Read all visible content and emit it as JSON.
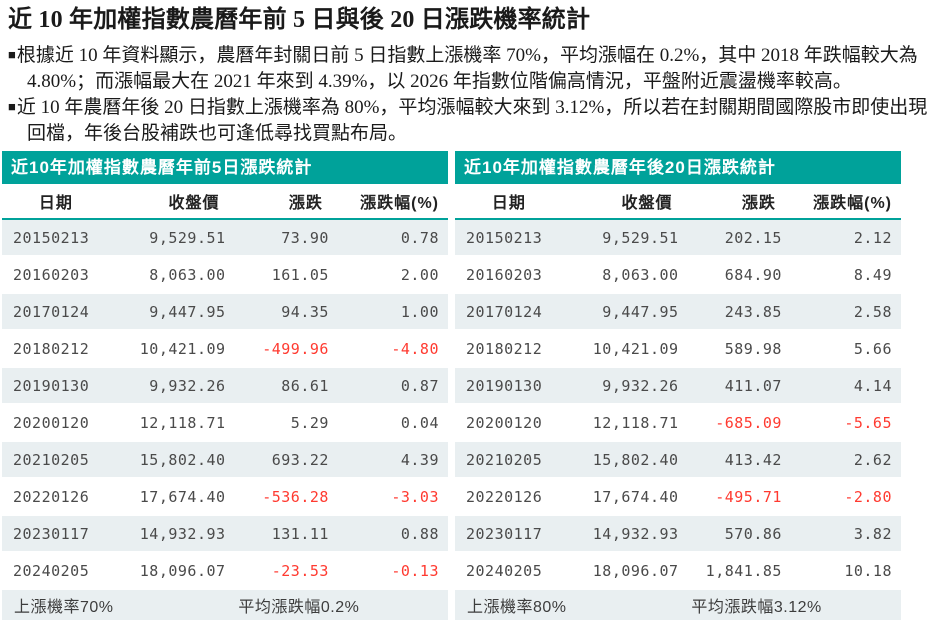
{
  "page": {
    "title": "近 10 年加權指數農曆年前 5 日與後 20 日漲跌機率統計",
    "bullet_marker": "■",
    "bullets": [
      "根據近 10 年資料顯示，農曆年封關日前 5 日指數上漲機率 70%，平均漲幅在 0.2%，其中 2018 年跌幅較大為 4.80%；而漲幅最大在 2021 年來到 4.39%，以 2026 年指數位階偏高情況，平盤附近震盪機率較高。",
      "近 10 年農曆年後 20 日指數上漲機率為 80%，平均漲幅較大來到 3.12%，所以若在封關期間國際股市即使出現回檔，年後台股補跌也可逢低尋找買點布局。"
    ]
  },
  "colors": {
    "teal_header": "#00a29a",
    "stripe_row": "#e9eff1",
    "negative_text": "#ff3a30"
  },
  "tables": [
    {
      "title": "近10年加權指數農曆年前5日漲跌統計",
      "columns": [
        "日期",
        "收盤價",
        "漲跌",
        "漲跌幅(%)"
      ],
      "rows": [
        {
          "date": "20150213",
          "close": "9,529.51",
          "change": "73.90",
          "pct": "0.78"
        },
        {
          "date": "20160203",
          "close": "8,063.00",
          "change": "161.05",
          "pct": "2.00"
        },
        {
          "date": "20170124",
          "close": "9,447.95",
          "change": "94.35",
          "pct": "1.00"
        },
        {
          "date": "20180212",
          "close": "10,421.09",
          "change": "-499.96",
          "pct": "-4.80"
        },
        {
          "date": "20190130",
          "close": "9,932.26",
          "change": "86.61",
          "pct": "0.87"
        },
        {
          "date": "20200120",
          "close": "12,118.71",
          "change": "5.29",
          "pct": "0.04"
        },
        {
          "date": "20210205",
          "close": "15,802.40",
          "change": "693.22",
          "pct": "4.39"
        },
        {
          "date": "20220126",
          "close": "17,674.40",
          "change": "-536.28",
          "pct": "-3.03"
        },
        {
          "date": "20230117",
          "close": "14,932.93",
          "change": "131.11",
          "pct": "0.88"
        },
        {
          "date": "20240205",
          "close": "18,096.07",
          "change": "-23.53",
          "pct": "-0.13"
        }
      ],
      "summary": {
        "win_rate": "上漲機率70%",
        "avg_change": "平均漲跌幅0.2%"
      }
    },
    {
      "title": "近10年加權指數農曆年後20日漲跌統計",
      "columns": [
        "日期",
        "收盤價",
        "漲跌",
        "漲跌幅(%)"
      ],
      "rows": [
        {
          "date": "20150213",
          "close": "9,529.51",
          "change": "202.15",
          "pct": "2.12"
        },
        {
          "date": "20160203",
          "close": "8,063.00",
          "change": "684.90",
          "pct": "8.49"
        },
        {
          "date": "20170124",
          "close": "9,447.95",
          "change": "243.85",
          "pct": "2.58"
        },
        {
          "date": "20180212",
          "close": "10,421.09",
          "change": "589.98",
          "pct": "5.66"
        },
        {
          "date": "20190130",
          "close": "9,932.26",
          "change": "411.07",
          "pct": "4.14"
        },
        {
          "date": "20200120",
          "close": "12,118.71",
          "change": "-685.09",
          "pct": "-5.65"
        },
        {
          "date": "20210205",
          "close": "15,802.40",
          "change": "413.42",
          "pct": "2.62"
        },
        {
          "date": "20220126",
          "close": "17,674.40",
          "change": "-495.71",
          "pct": "-2.80"
        },
        {
          "date": "20230117",
          "close": "14,932.93",
          "change": "570.86",
          "pct": "3.82"
        },
        {
          "date": "20240205",
          "close": "18,096.07",
          "change": "1,841.85",
          "pct": "10.18"
        }
      ],
      "summary": {
        "win_rate": "上漲機率80%",
        "avg_change": "平均漲跌幅3.12%"
      }
    }
  ]
}
